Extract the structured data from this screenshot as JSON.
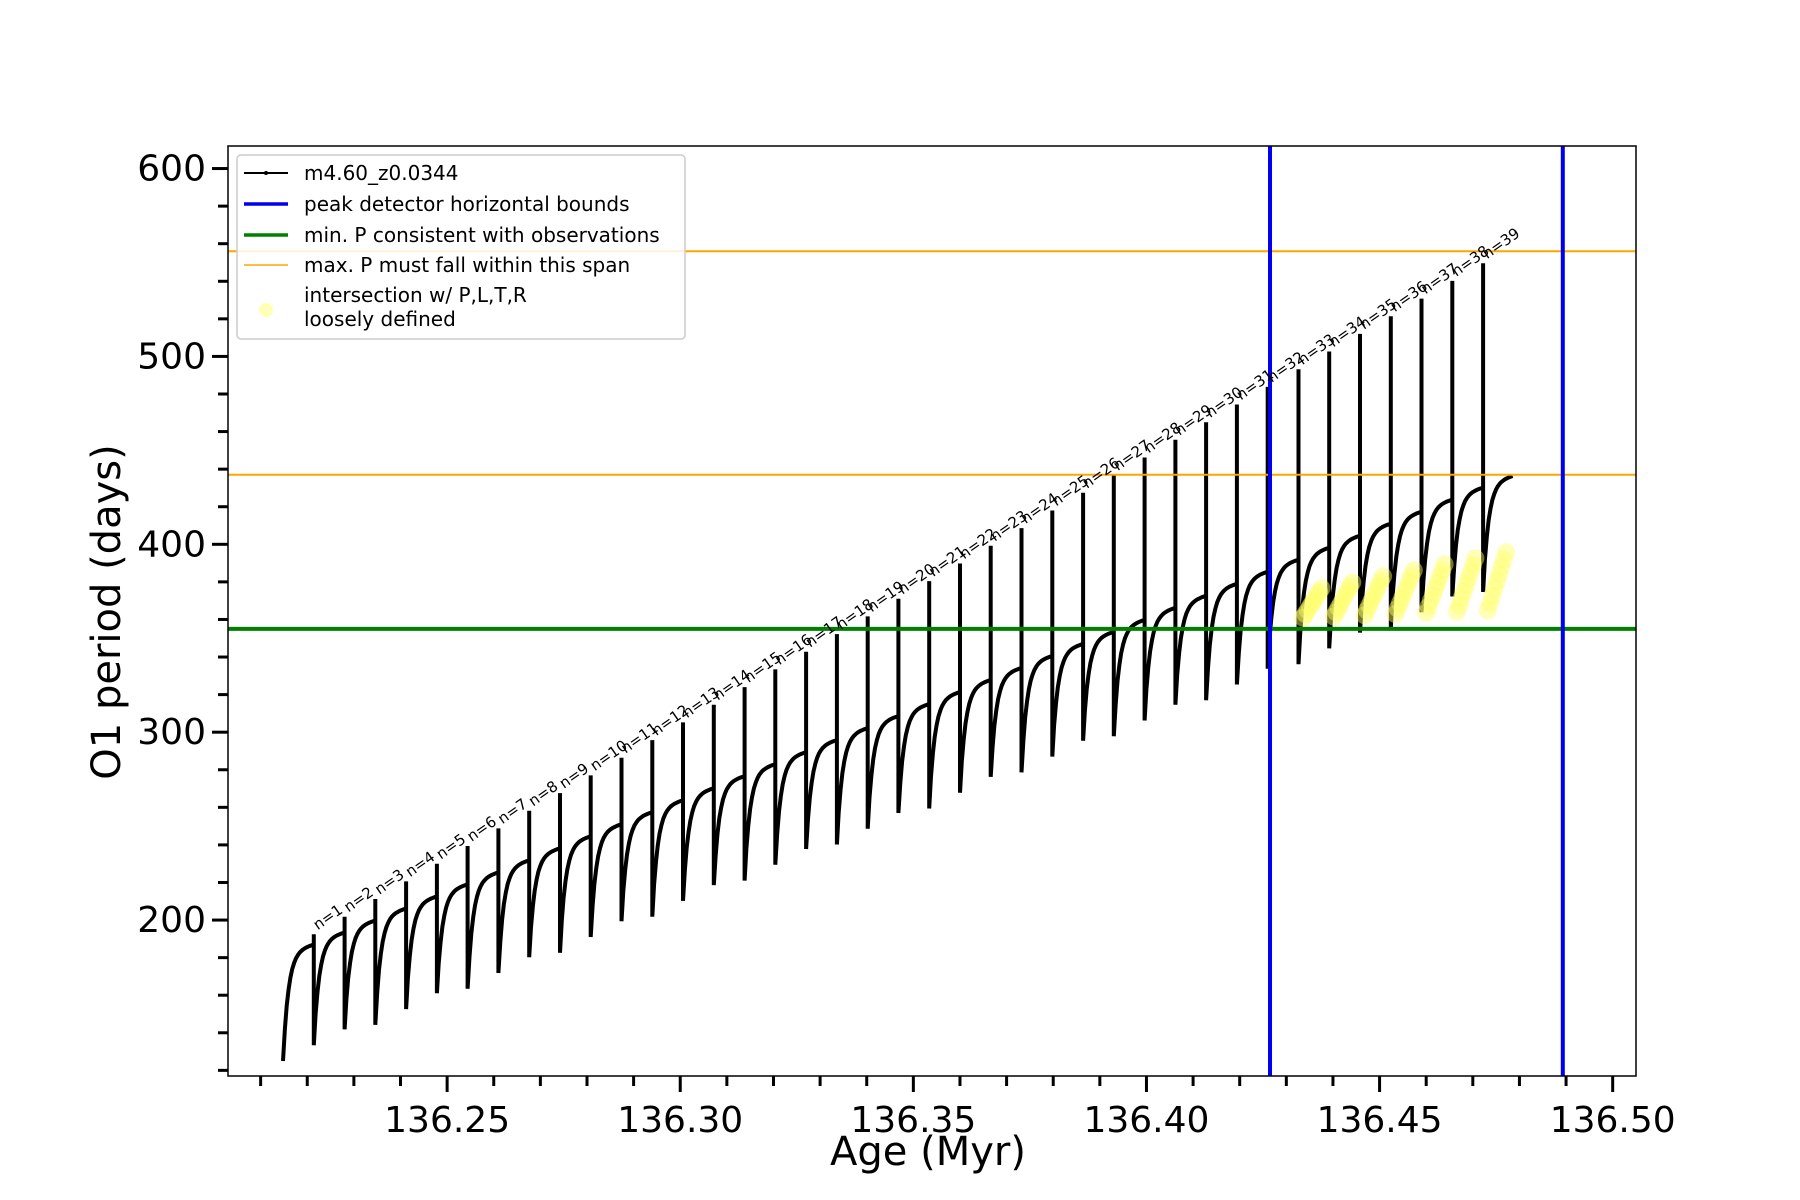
{
  "chart_data": {
    "type": "line",
    "xlabel": "Age (Myr)",
    "ylabel": "O1 period (days)",
    "xlim": [
      136.203,
      136.505
    ],
    "ylim": [
      117,
      612
    ],
    "x_ticks": [
      136.25,
      136.3,
      136.35,
      136.4,
      136.45,
      136.5
    ],
    "x_tick_labels": [
      "136.25",
      "136.30",
      "136.35",
      "136.40",
      "136.45",
      "136.50"
    ],
    "y_ticks": [
      200,
      300,
      400,
      500,
      600
    ],
    "y_tick_labels": [
      "200",
      "300",
      "400",
      "500",
      "600"
    ],
    "x_minor_step": 0.01,
    "y_minor_step": 20,
    "legend_position": "top-left",
    "legend": [
      {
        "label": "m4.60_z0.0344",
        "style": "line-marker",
        "color": "#000000"
      },
      {
        "label": "peak detector horizontal bounds",
        "style": "line",
        "color": "#0000ee"
      },
      {
        "label": "min. P consistent with observations",
        "style": "line",
        "color": "#008000"
      },
      {
        "label": "max. P must fall within this span",
        "style": "thin-line",
        "color": "#ffa500"
      },
      {
        "label": "intersection w/ P,L,T,R",
        "label2": "loosely defined",
        "style": "marker",
        "color": "#ffff99"
      }
    ],
    "vertical_lines": [
      136.4265,
      136.4893
    ],
    "vertical_line_color": "#0000ee",
    "min_p_line": 355,
    "min_p_color": "#008000",
    "max_p_span": [
      437,
      556
    ],
    "max_p_color": "#ffa500",
    "pulse_series": {
      "name": "m4.60_z0.0344",
      "color": "#000000",
      "start_x": 136.2148,
      "pulse_spacing": 0.0066,
      "base_start": 183,
      "base_step": 6.4,
      "dip_depth": 58,
      "spike_start": 183,
      "spike_step": 9.4,
      "end_x": 136.4915
    },
    "pulse_labels": [
      "n=1",
      "n=2",
      "n=3",
      "n=4",
      "n=5",
      "n=6",
      "n=7",
      "n=8",
      "n=9",
      "n=10",
      "n=11",
      "n=12",
      "n=13",
      "n=14",
      "n=15",
      "n=16",
      "n=17",
      "n=18",
      "n=19",
      "n=20",
      "n=21",
      "n=22",
      "n=23",
      "n=24",
      "n=25",
      "n=26",
      "n=27",
      "n=28",
      "n=29",
      "n=30",
      "n=31",
      "n=32",
      "n=33",
      "n=34",
      "n=35",
      "n=36",
      "n=37",
      "n=38",
      "n=39"
    ],
    "intersection_marker_color": "#ffff66"
  }
}
